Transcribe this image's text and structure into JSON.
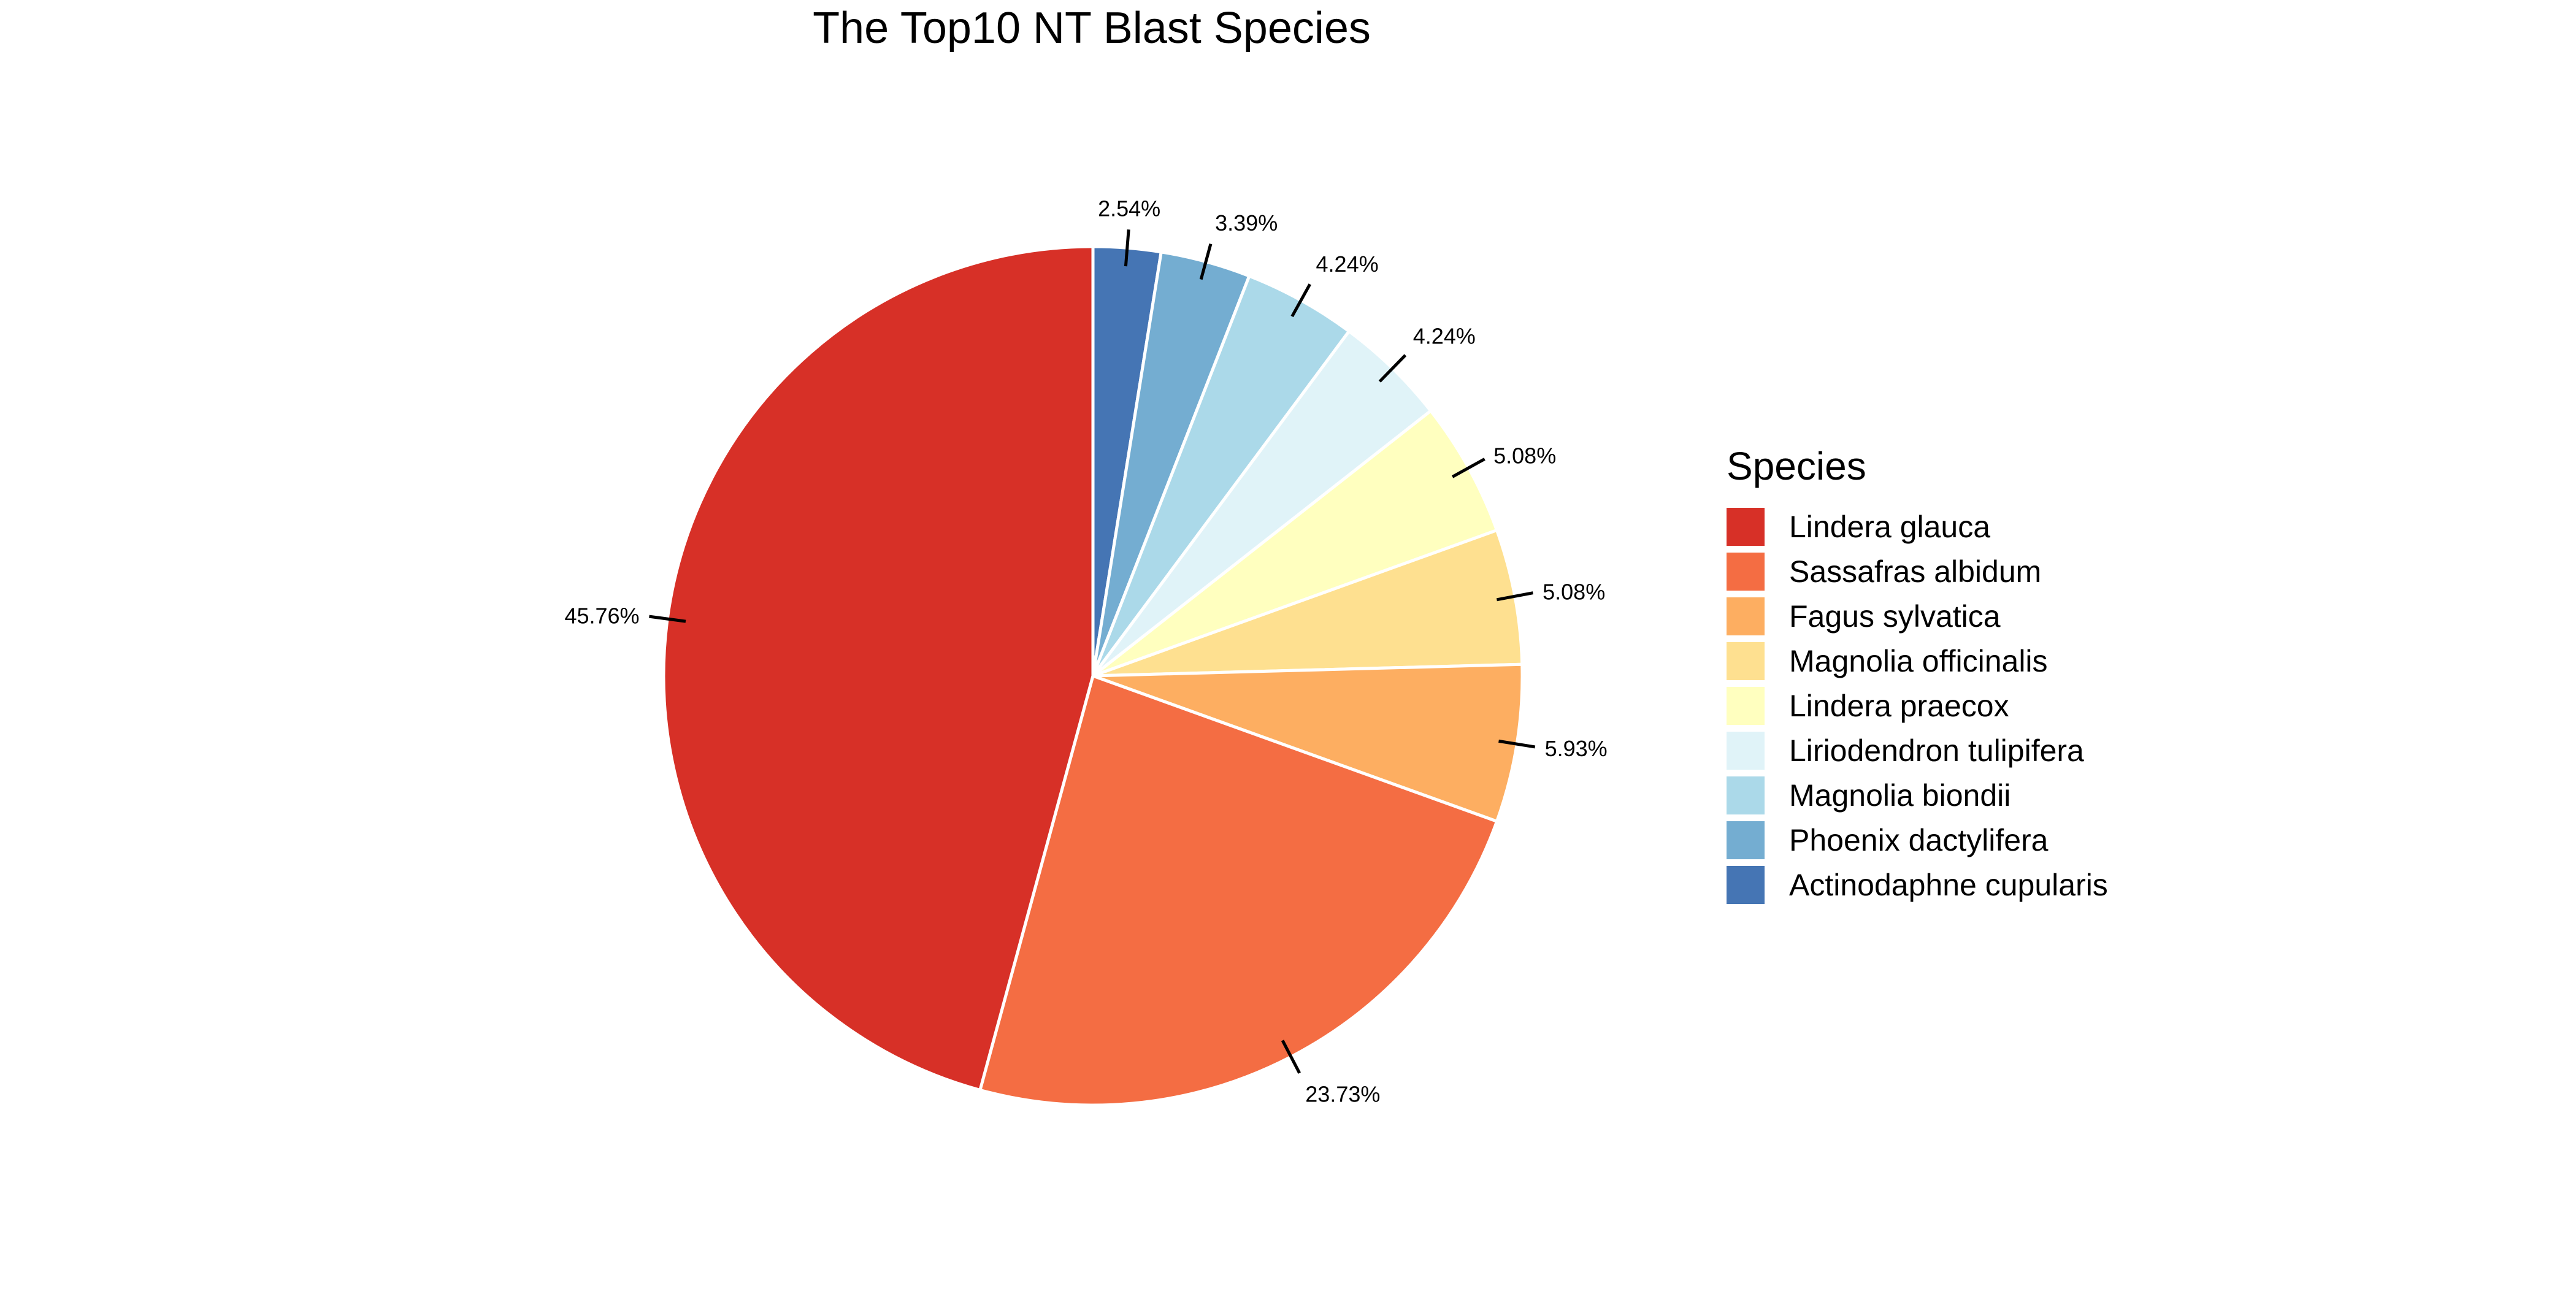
{
  "chart_data": {
    "type": "pie",
    "title": "The Top10 NT Blast Species",
    "legend_title": "Species",
    "legend_position": "right",
    "direction": "clockwise",
    "start_angle": "top",
    "slices": [
      {
        "label": "Actinodaphne cupularis",
        "value": 2.54,
        "value_label": "2.54%",
        "color": "#4575b4"
      },
      {
        "label": "Phoenix dactylifera",
        "value": 3.39,
        "value_label": "3.39%",
        "color": "#74add1"
      },
      {
        "label": "Magnolia biondii",
        "value": 4.24,
        "value_label": "4.24%",
        "color": "#abd9e9"
      },
      {
        "label": "Liriodendron tulipifera",
        "value": 4.24,
        "value_label": "4.24%",
        "color": "#e0f3f8"
      },
      {
        "label": "Lindera praecox",
        "value": 5.08,
        "value_label": "5.08%",
        "color": "#ffffbf"
      },
      {
        "label": "Magnolia officinalis",
        "value": 5.08,
        "value_label": "5.08%",
        "color": "#fee090"
      },
      {
        "label": "Fagus sylvatica",
        "value": 5.93,
        "value_label": "5.93%",
        "color": "#fdae61"
      },
      {
        "label": "Sassafras albidum",
        "value": 23.73,
        "value_label": "23.73%",
        "color": "#f46d43"
      },
      {
        "label": "Lindera glauca",
        "value": 45.76,
        "value_label": "45.76%",
        "color": "#d73027"
      }
    ],
    "legend_order": [
      "Lindera glauca",
      "Sassafras albidum",
      "Fagus sylvatica",
      "Magnolia officinalis",
      "Lindera praecox",
      "Liriodendron tulipifera",
      "Magnolia biondii",
      "Phoenix dactylifera",
      "Actinodaphne cupularis"
    ]
  }
}
